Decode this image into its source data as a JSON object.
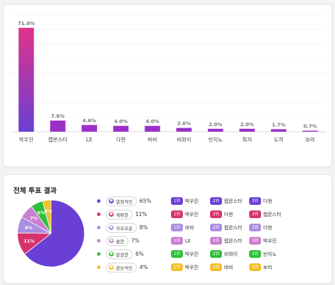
{
  "chart_data": {
    "type": "bar",
    "categories": [
      "박우진",
      "랩몬스터",
      "LE",
      "다현",
      "바비",
      "비와이",
      "빈지노",
      "최자",
      "도끼",
      "보라"
    ],
    "values": [
      71.0,
      7.6,
      4.6,
      4.0,
      4.0,
      2.6,
      2.0,
      2.0,
      1.7,
      0.7
    ],
    "value_labels": [
      "71.0%",
      "7.6%",
      "4.6%",
      "4.0%",
      "4.0%",
      "2.6%",
      "2.0%",
      "2.0%",
      "1.7%",
      "0.7%"
    ],
    "ylim": [
      0,
      80
    ]
  },
  "vote": {
    "title": "전체 투표 결과",
    "pie": [
      {
        "label": "열정적인",
        "pct": 65,
        "color": "#6a3fd4"
      },
      {
        "label": "계확한",
        "pct": 11,
        "color": "#d6336c"
      },
      {
        "label": "자유로운",
        "pct": 8,
        "color": "#a98ee0"
      },
      {
        "label": "쿨한",
        "pct": 7,
        "color": "#c97fd0"
      },
      {
        "label": "말끔한",
        "pct": 6,
        "color": "#2fbf3a"
      },
      {
        "label": "관능적인",
        "pct": 4,
        "color": "#f2c028"
      }
    ],
    "pie_labels": [
      "11%",
      "8%",
      "7%",
      "6%",
      "4%"
    ],
    "legend": [
      {
        "label": "열정적인",
        "pct": "65%",
        "color": "#6a3fd4"
      },
      {
        "label": "계확한",
        "pct": "11%",
        "color": "#d6336c"
      },
      {
        "label": "자유로운",
        "pct": "8%",
        "color": "#a98ee0"
      },
      {
        "label": "쿨한",
        "pct": "7%",
        "color": "#c97fd0"
      },
      {
        "label": "말끔한",
        "pct": "6%",
        "color": "#2fbf3a"
      },
      {
        "label": "관능적인",
        "pct": "4%",
        "color": "#f2c028"
      }
    ],
    "ranks": [
      [
        {
          "badge": "1위",
          "name": "박우진"
        },
        {
          "badge": "2위",
          "name": "랩몬스터"
        },
        {
          "badge": "3위",
          "name": "다현"
        }
      ],
      [
        {
          "badge": "1위",
          "name": "박우진"
        },
        {
          "badge": "2위",
          "name": "다현"
        },
        {
          "badge": "3위",
          "name": "랩몬스터"
        }
      ],
      [
        {
          "badge": "1위",
          "name": "바비"
        },
        {
          "badge": "2위",
          "name": "랩몬스터"
        },
        {
          "badge": "3위",
          "name": "다현"
        }
      ],
      [
        {
          "badge": "1위",
          "name": "LE"
        },
        {
          "badge": "2위",
          "name": "랩몬스터"
        },
        {
          "badge": "3위",
          "name": "박우진"
        }
      ],
      [
        {
          "badge": "1위",
          "name": "박우진"
        },
        {
          "badge": "2위",
          "name": "비와이"
        },
        {
          "badge": "3위",
          "name": "빈지노"
        }
      ],
      [
        {
          "badge": "1위",
          "name": "박우진"
        },
        {
          "badge": "2위",
          "name": "바비"
        },
        {
          "badge": "3위",
          "name": "보라"
        }
      ]
    ]
  },
  "colors": {
    "bar_top": "#e0338a",
    "bar_bottom": "#6a3fd4",
    "bar_small": "#9b30c8",
    "grid": "#ececf1",
    "axis": "#cfcfd8"
  }
}
